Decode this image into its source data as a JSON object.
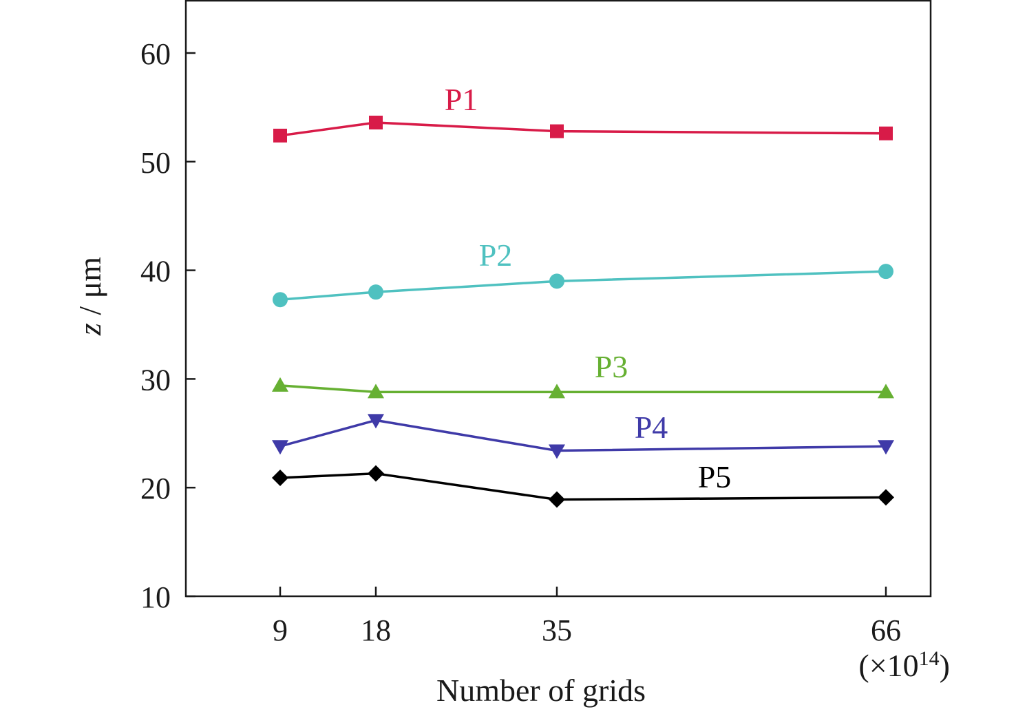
{
  "chart_data": {
    "type": "line",
    "title": "",
    "xlabel": "Number of grids",
    "x_multiplier": "(×10",
    "x_multiplier_exp": "14",
    "x_multiplier_close": ")",
    "ylabel_italic": "z",
    "ylabel_rest": " / μm",
    "x": [
      9,
      18,
      35,
      66
    ],
    "x_tick_labels": [
      "9",
      "18",
      "35",
      "66"
    ],
    "yticks": [
      10,
      20,
      30,
      40,
      50,
      60
    ],
    "y_tick_labels": [
      "10",
      "20",
      "30",
      "40",
      "50",
      "60"
    ],
    "ylim": [
      10,
      65
    ],
    "grid": false,
    "legend": "none (labels placed next to lines)",
    "series": [
      {
        "name": "P1",
        "color": "#d81b48",
        "marker": "square",
        "values": [
          52.4,
          53.6,
          52.8,
          52.6
        ]
      },
      {
        "name": "P2",
        "color": "#4fc1c0",
        "marker": "circle",
        "values": [
          37.3,
          38.0,
          39.0,
          39.9
        ]
      },
      {
        "name": "P3",
        "color": "#66b032",
        "marker": "triangle-up",
        "values": [
          29.4,
          28.8,
          28.8,
          28.8
        ]
      },
      {
        "name": "P4",
        "color": "#3f3aa8",
        "marker": "triangle-down",
        "values": [
          23.8,
          26.2,
          23.4,
          23.8
        ]
      },
      {
        "name": "P5",
        "color": "#000000",
        "marker": "diamond",
        "values": [
          20.9,
          21.3,
          18.9,
          19.1
        ]
      }
    ]
  }
}
